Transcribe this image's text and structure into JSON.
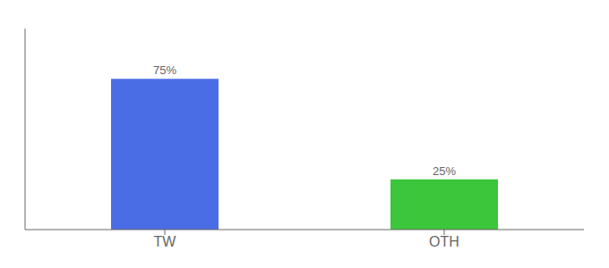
{
  "chart_data": {
    "type": "bar",
    "categories": [
      "TW",
      "OTH"
    ],
    "values": [
      75,
      25
    ],
    "value_labels": [
      "75%",
      "25%"
    ],
    "colors": [
      "#4a6de5",
      "#3bc63b"
    ],
    "ylim": [
      0,
      100
    ],
    "grid": false,
    "data_labels": true,
    "tick_labels": "x"
  }
}
